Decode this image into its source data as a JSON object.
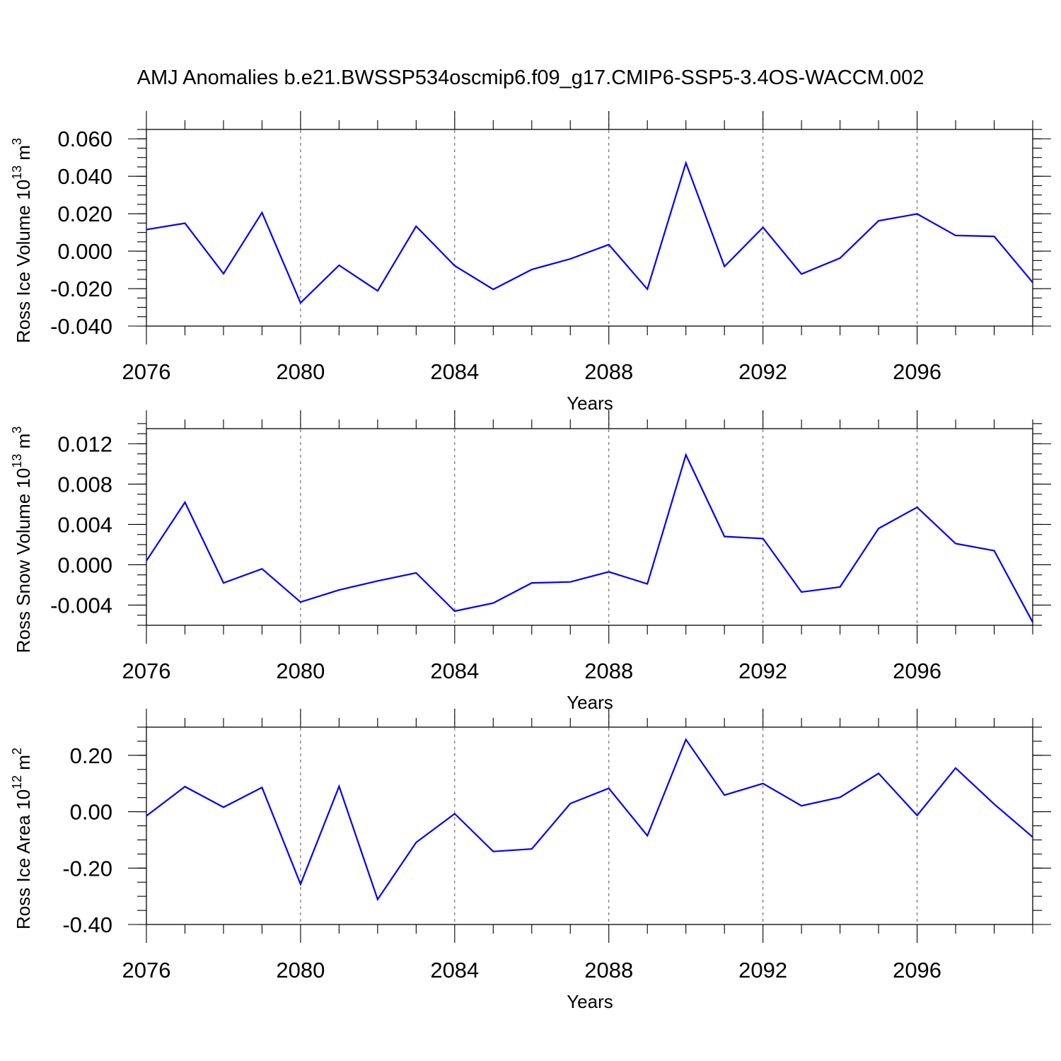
{
  "title": "AMJ Anomalies b.e21.BWSSP534oscmip6.f09_g17.CMIP6-SSP5-3.4OS-WACCM.002",
  "chart_data": [
    {
      "type": "line",
      "ylabel": {
        "text": "Ross Ice Volume 10",
        "sup": "13",
        "unit": " m",
        "unit_sup": "3"
      },
      "xlabel": "Years",
      "xlim": [
        2076,
        2099
      ],
      "ylim": [
        -0.04,
        0.065
      ],
      "xticks": [
        "2076",
        "2080",
        "2084",
        "2088",
        "2092",
        "2096"
      ],
      "yticks": [
        "-0.040",
        "-0.020",
        "0.000",
        "0.020",
        "0.040",
        "0.060"
      ],
      "ytick_values": [
        -0.04,
        -0.02,
        0.0,
        0.02,
        0.04,
        0.06
      ],
      "y_minor_step": 0.005,
      "grid": "dashed vertical at major x ticks",
      "series": [
        {
          "name": "Ross Ice Volume",
          "color": "#0000ff",
          "x": [
            2076,
            2077,
            2078,
            2079,
            2080,
            2081,
            2082,
            2083,
            2084,
            2085,
            2086,
            2087,
            2088,
            2089,
            2090,
            2091,
            2092,
            2093,
            2094,
            2095,
            2096,
            2097,
            2098,
            2099
          ],
          "values": [
            0.0115,
            0.0149,
            -0.012,
            0.0206,
            -0.0276,
            -0.0075,
            -0.0212,
            0.0133,
            -0.0078,
            -0.0204,
            -0.0098,
            -0.0041,
            0.0035,
            -0.0203,
            0.0471,
            -0.0082,
            0.0127,
            -0.0122,
            -0.0037,
            0.0162,
            0.0199,
            0.0084,
            0.0079,
            -0.0167
          ]
        }
      ]
    },
    {
      "type": "line",
      "ylabel": {
        "text": "Ross Snow Volume 10",
        "sup": "13",
        "unit": " m",
        "unit_sup": "3"
      },
      "xlabel": "Years",
      "xlim": [
        2076,
        2099
      ],
      "ylim": [
        -0.006,
        0.0135
      ],
      "xticks": [
        "2076",
        "2080",
        "2084",
        "2088",
        "2092",
        "2096"
      ],
      "yticks": [
        "-0.004",
        "0.000",
        "0.004",
        "0.008",
        "0.012"
      ],
      "ytick_values": [
        -0.004,
        0.0,
        0.004,
        0.008,
        0.012
      ],
      "y_minor_step": 0.001,
      "grid": "dashed vertical at major x ticks",
      "series": [
        {
          "name": "Ross Snow Volume",
          "color": "#0000ff",
          "x": [
            2076,
            2077,
            2078,
            2079,
            2080,
            2081,
            2082,
            2083,
            2084,
            2085,
            2086,
            2087,
            2088,
            2089,
            2090,
            2091,
            2092,
            2093,
            2094,
            2095,
            2096,
            2097,
            2098,
            2099
          ],
          "values": [
            0.0004,
            0.0062,
            -0.0018,
            -0.0004,
            -0.0037,
            -0.0025,
            -0.0016,
            -0.0008,
            -0.0046,
            -0.0038,
            -0.0018,
            -0.0017,
            -0.0007,
            -0.0019,
            0.0109,
            0.0028,
            0.0026,
            -0.0027,
            -0.0022,
            0.0036,
            0.0057,
            0.0021,
            0.0014,
            -0.0057
          ]
        }
      ]
    },
    {
      "type": "line",
      "ylabel": {
        "text": "Ross Ice Area 10",
        "sup": "12",
        "unit": " m",
        "unit_sup": "2"
      },
      "xlabel": "Years",
      "xlim": [
        2076,
        2099
      ],
      "ylim": [
        -0.4,
        0.3
      ],
      "xticks": [
        "2076",
        "2080",
        "2084",
        "2088",
        "2092",
        "2096"
      ],
      "yticks": [
        "-0.40",
        "-0.20",
        "0.00",
        "0.20"
      ],
      "ytick_values": [
        -0.4,
        -0.2,
        0.0,
        0.2
      ],
      "y_minor_step": 0.05,
      "grid": "dashed vertical at major x ticks",
      "series": [
        {
          "name": "Ross Ice Area",
          "color": "#0000ff",
          "x": [
            2076,
            2077,
            2078,
            2079,
            2080,
            2081,
            2082,
            2083,
            2084,
            2085,
            2086,
            2087,
            2088,
            2089,
            2090,
            2091,
            2092,
            2093,
            2094,
            2095,
            2096,
            2097,
            2098,
            2099
          ],
          "values": [
            -0.015,
            0.089,
            0.016,
            0.086,
            -0.257,
            0.09,
            -0.311,
            -0.109,
            -0.007,
            -0.141,
            -0.132,
            0.029,
            0.083,
            -0.085,
            0.256,
            0.059,
            0.1,
            0.021,
            0.051,
            0.136,
            -0.013,
            0.155,
            0.027,
            -0.09
          ]
        }
      ]
    }
  ]
}
